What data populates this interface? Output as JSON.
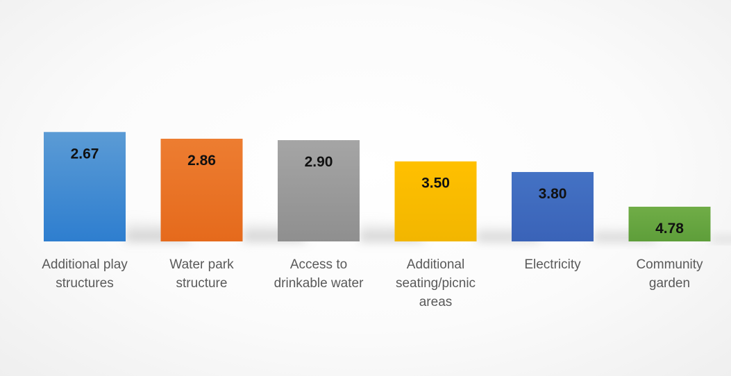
{
  "chart_data": {
    "type": "bar",
    "categories": [
      "Additional play structures",
      "Water park structure",
      "Access to drinkable water",
      "Additional seating/picnic areas",
      "Electricity",
      "Community garden"
    ],
    "category_label_lines": [
      [
        "Additional play",
        "structures"
      ],
      [
        "Water park",
        "structure"
      ],
      [
        "Access to",
        "drinkable water"
      ],
      [
        "Additional",
        "seating/picnic",
        "areas"
      ],
      [
        "Electricity"
      ],
      [
        "Community",
        "garden"
      ]
    ],
    "values": [
      2.67,
      2.86,
      2.9,
      3.5,
      3.8,
      4.78
    ],
    "value_labels": [
      "2.67",
      "2.86",
      "2.90",
      "3.50",
      "3.80",
      "4.78"
    ],
    "colors": [
      "#2E7ECF",
      "#E56A1C",
      "#8F8F8F",
      "#F2B600",
      "#3A63B8",
      "#5E9E3A"
    ],
    "color_tops": [
      "#5B9BD5",
      "#ED7D31",
      "#A5A5A5",
      "#FFC000",
      "#4472C4",
      "#70AD47"
    ],
    "axis": "hidden; bar height decreases as value increases (rank-style scale)",
    "ylim": [
      0,
      5.76
    ],
    "grid": false,
    "legend": "none",
    "title": "",
    "xlabel": "",
    "ylabel": ""
  }
}
